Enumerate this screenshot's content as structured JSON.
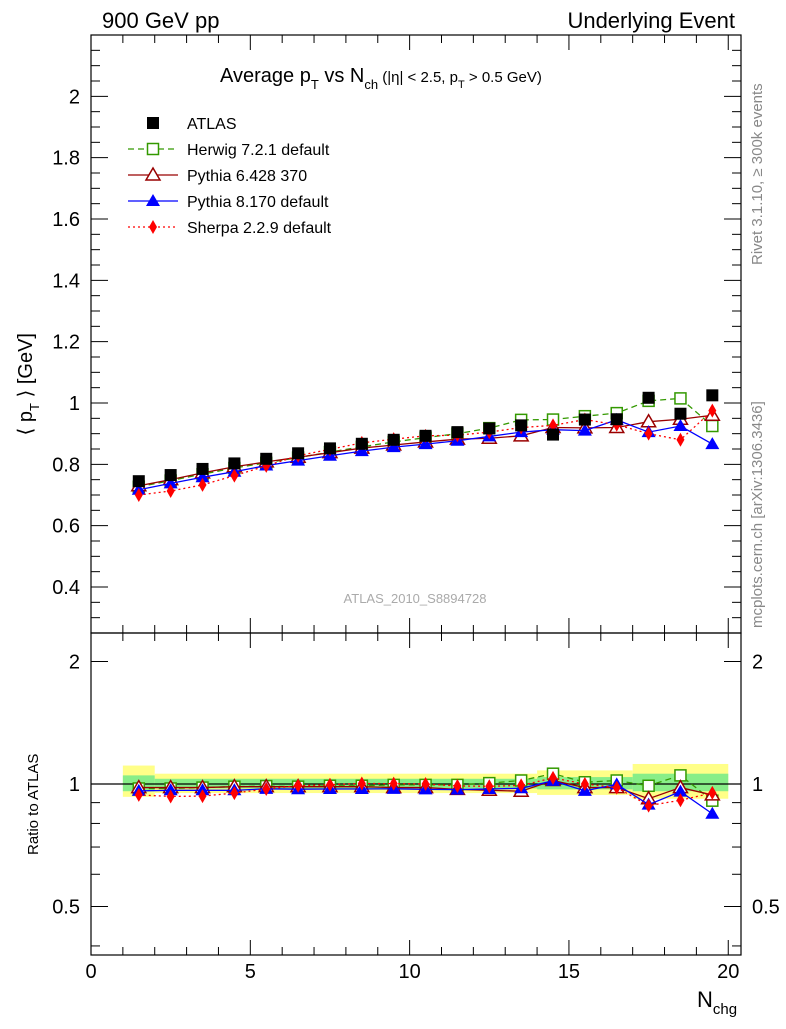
{
  "chart_data": {
    "type": "scatter",
    "header_left": "900 GeV pp",
    "header_right": "Underlying Event",
    "title": {
      "t1": "Average p",
      "t1_sub": "T",
      "t2": " vs N",
      "t2_sub": "ch",
      "t3": " (|η| < 2.5, p",
      "t3_sub": "T",
      "t4": " > 0.5 GeV)"
    },
    "ylabel": {
      "part1": "⟨ p",
      "sub": "T",
      "part2": " ⟩ [GeV]"
    },
    "ratio_ylabel": "Ratio to ATLAS",
    "xlabel": {
      "main": "N",
      "sub": "chg"
    },
    "watermark": "ATLAS_2010_S8894728",
    "side_label_top": "Rivet 3.1.10, ≥ 300k events",
    "side_label_bottom": "mcplots.cern.ch [arXiv:1306.3436]",
    "xlim": [
      0,
      20.4
    ],
    "ylim": [
      0.25,
      2.2
    ],
    "ratio_ylim": [
      0.38,
      2.35
    ],
    "x_ticks": [
      0,
      5,
      10,
      15,
      20
    ],
    "y_ticks": [
      0.4,
      0.6,
      0.8,
      1,
      1.2,
      1.4,
      1.6,
      1.8,
      2
    ],
    "y_tick_labels": [
      "0.4",
      "0.6",
      "0.8",
      "1",
      "1.2",
      "1.4",
      "1.6",
      "1.8",
      "2"
    ],
    "ratio_y_ticks": [
      0.5,
      1,
      2
    ],
    "ratio_y_tick_labels": [
      "0.5",
      "1",
      "2"
    ],
    "x": [
      1.5,
      2.5,
      3.5,
      4.5,
      5.5,
      6.5,
      7.5,
      8.5,
      9.5,
      10.5,
      11.5,
      12.5,
      13.5,
      14.5,
      15.5,
      16.5,
      17.5,
      18.5,
      19.5
    ],
    "ratio_band_outer": [
      [
        1.0,
        2.0,
        0.93,
        1.11
      ],
      [
        2.0,
        14.0,
        0.95,
        1.06
      ],
      [
        14.0,
        17.0,
        0.94,
        1.08
      ],
      [
        17.0,
        20.0,
        0.92,
        1.12
      ]
    ],
    "ratio_band_inner": [
      [
        1.0,
        2.0,
        0.96,
        1.05
      ],
      [
        2.0,
        14.0,
        0.975,
        1.03
      ],
      [
        14.0,
        17.0,
        0.97,
        1.04
      ],
      [
        17.0,
        20.0,
        0.96,
        1.06
      ]
    ],
    "series": [
      {
        "name": "ATLAS",
        "color": "#000000",
        "marker": "square-filled",
        "line": "none",
        "values": [
          0.745,
          0.765,
          0.785,
          0.803,
          0.818,
          0.836,
          0.852,
          0.867,
          0.88,
          0.893,
          0.905,
          0.917,
          0.927,
          0.897,
          0.946,
          0.947,
          1.017,
          0.965,
          1.025
        ],
        "ratio": [
          1.0,
          1.0,
          1.0,
          1.0,
          1.0,
          1.0,
          1.0,
          1.0,
          1.0,
          1.0,
          1.0,
          1.0,
          1.0,
          1.0,
          1.0,
          1.0,
          1.0,
          1.0,
          1.0
        ]
      },
      {
        "name": "Herwig 7.2.1 default",
        "color": "#339900",
        "marker": "square-open",
        "line": "dashed",
        "values": [
          0.727,
          0.747,
          0.768,
          0.788,
          0.805,
          0.822,
          0.84,
          0.857,
          0.873,
          0.887,
          0.9,
          0.918,
          0.945,
          0.946,
          0.957,
          0.967,
          1.007,
          1.015,
          0.925
        ],
        "ratio": [
          0.975,
          0.975,
          0.98,
          0.985,
          0.988,
          0.985,
          0.99,
          0.99,
          0.995,
          0.995,
          0.995,
          1.005,
          1.02,
          1.06,
          1.01,
          1.02,
          0.99,
          1.05,
          0.91
        ]
      },
      {
        "name": "Pythia 6.428 370",
        "color": "#990000",
        "marker": "triangle-open",
        "line": "solid",
        "values": [
          0.73,
          0.75,
          0.772,
          0.792,
          0.808,
          0.823,
          0.838,
          0.853,
          0.863,
          0.873,
          0.882,
          0.885,
          0.893,
          0.92,
          0.919,
          0.92,
          0.939,
          0.947,
          0.96
        ],
        "ratio": [
          0.98,
          0.98,
          0.98,
          0.985,
          0.985,
          0.985,
          0.985,
          0.985,
          0.98,
          0.98,
          0.97,
          0.965,
          0.96,
          1.02,
          0.98,
          0.98,
          0.92,
          0.98,
          0.94
        ]
      },
      {
        "name": "Pythia 8.170 default",
        "color": "#0000ff",
        "marker": "triangle-filled",
        "line": "solid",
        "values": [
          0.717,
          0.738,
          0.758,
          0.776,
          0.796,
          0.812,
          0.828,
          0.843,
          0.856,
          0.866,
          0.877,
          0.891,
          0.905,
          0.913,
          0.91,
          0.945,
          0.905,
          0.925,
          0.866
        ],
        "ratio": [
          0.962,
          0.965,
          0.965,
          0.965,
          0.973,
          0.971,
          0.972,
          0.972,
          0.973,
          0.97,
          0.969,
          0.972,
          0.976,
          1.018,
          0.962,
          0.998,
          0.89,
          0.958,
          0.845
        ]
      },
      {
        "name": "Sherpa 2.2.9 default",
        "color": "#ff0000",
        "marker": "diamond-filled",
        "line": "dotted",
        "values": [
          0.7,
          0.713,
          0.733,
          0.763,
          0.795,
          0.828,
          0.849,
          0.87,
          0.882,
          0.893,
          0.895,
          0.905,
          0.92,
          0.927,
          0.946,
          0.929,
          0.9,
          0.88,
          0.975
        ],
        "ratio": [
          0.94,
          0.932,
          0.934,
          0.95,
          0.972,
          0.99,
          0.996,
          1.003,
          1.002,
          1.0,
          0.989,
          0.987,
          0.992,
          1.035,
          1.0,
          0.98,
          0.885,
          0.912,
          0.951
        ]
      }
    ],
    "legend_position": "top-left"
  }
}
